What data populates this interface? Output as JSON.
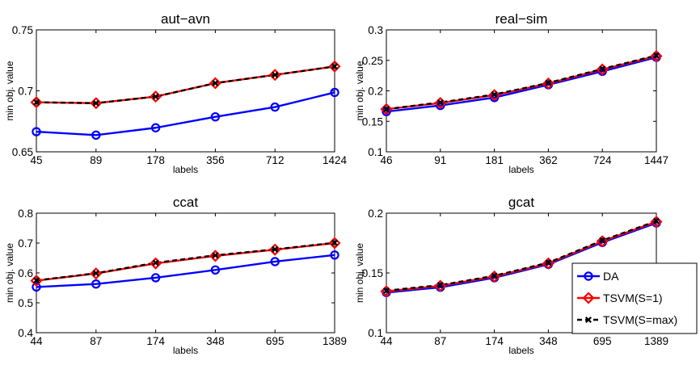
{
  "series_styles": [
    {
      "name": "DA",
      "color": "#0000ff",
      "dash": "",
      "marker": "circle"
    },
    {
      "name": "TSVM(S=1)",
      "color": "#ff0000",
      "dash": "",
      "marker": "diamond"
    },
    {
      "name": "TSVM(S=max)",
      "color": "#000000",
      "dash": "dashed",
      "marker": "x"
    }
  ],
  "legend": {
    "placement": "bottom-right of gcat panel",
    "entries": [
      "DA",
      "TSVM(S=1)",
      "TSVM(S=max)"
    ]
  },
  "chart_data": [
    {
      "type": "line",
      "title": "aut−avn",
      "xlabel": "labels",
      "ylabel": "min obj. value",
      "categories": [
        "45",
        "89",
        "178",
        "356",
        "712",
        "1424"
      ],
      "ylim": [
        0.65,
        0.75
      ],
      "yticks": [
        "0.65",
        "0.7",
        "0.75"
      ],
      "ytick_values": [
        0.65,
        0.7,
        0.75
      ],
      "series": [
        {
          "name": "DA",
          "values": [
            0.6665,
            0.6637,
            0.6697,
            0.6787,
            0.6867,
            0.6987
          ]
        },
        {
          "name": "TSVM(S=1)",
          "values": [
            0.6906,
            0.6899,
            0.6953,
            0.7063,
            0.7131,
            0.72
          ]
        },
        {
          "name": "TSVM(S=max)",
          "values": [
            0.6906,
            0.6899,
            0.6953,
            0.7063,
            0.7131,
            0.72
          ]
        }
      ]
    },
    {
      "type": "line",
      "title": "real−sim",
      "xlabel": "labels",
      "ylabel": "min obj. value",
      "categories": [
        "46",
        "91",
        "181",
        "362",
        "724",
        "1447"
      ],
      "ylim": [
        0.1,
        0.3
      ],
      "yticks": [
        "0.1",
        "0.15",
        "0.2",
        "0.25",
        "0.3"
      ],
      "ytick_values": [
        0.1,
        0.15,
        0.2,
        0.25,
        0.3
      ],
      "series": [
        {
          "name": "DA",
          "values": [
            0.166,
            0.176,
            0.189,
            0.21,
            0.232,
            0.255
          ]
        },
        {
          "name": "TSVM(S=1)",
          "values": [
            0.17,
            0.18,
            0.193,
            0.212,
            0.235,
            0.257
          ]
        },
        {
          "name": "TSVM(S=max)",
          "values": [
            0.17,
            0.181,
            0.194,
            0.213,
            0.236,
            0.258
          ]
        }
      ]
    },
    {
      "type": "line",
      "title": "ccat",
      "xlabel": "labels",
      "ylabel": "min obj. value",
      "categories": [
        "44",
        "87",
        "174",
        "348",
        "695",
        "1389"
      ],
      "ylim": [
        0.4,
        0.8
      ],
      "yticks": [
        "0.4",
        "0.5",
        "0.6",
        "0.7",
        "0.8"
      ],
      "ytick_values": [
        0.4,
        0.5,
        0.6,
        0.7,
        0.8
      ],
      "series": [
        {
          "name": "DA",
          "values": [
            0.553,
            0.563,
            0.584,
            0.61,
            0.638,
            0.66
          ]
        },
        {
          "name": "TSVM(S=1)",
          "values": [
            0.574,
            0.598,
            0.632,
            0.657,
            0.678,
            0.7
          ]
        },
        {
          "name": "TSVM(S=max)",
          "values": [
            0.575,
            0.599,
            0.634,
            0.659,
            0.679,
            0.701
          ]
        }
      ]
    },
    {
      "type": "line",
      "title": "gcat",
      "xlabel": "labels",
      "ylabel": "min obj. value",
      "categories": [
        "44",
        "87",
        "174",
        "348",
        "695",
        "1389"
      ],
      "ylim": [
        0.1,
        0.2
      ],
      "yticks": [
        "0.1",
        "0.15",
        "0.2"
      ],
      "ytick_values": [
        0.1,
        0.15,
        0.2
      ],
      "series": [
        {
          "name": "DA",
          "values": [
            0.1336,
            0.138,
            0.146,
            0.1572,
            0.1755,
            0.1918
          ]
        },
        {
          "name": "TSVM(S=1)",
          "values": [
            0.1346,
            0.1392,
            0.147,
            0.158,
            0.1765,
            0.1928
          ]
        },
        {
          "name": "TSVM(S=max)",
          "values": [
            0.1352,
            0.1398,
            0.1476,
            0.1586,
            0.1772,
            0.1934
          ]
        }
      ]
    }
  ]
}
